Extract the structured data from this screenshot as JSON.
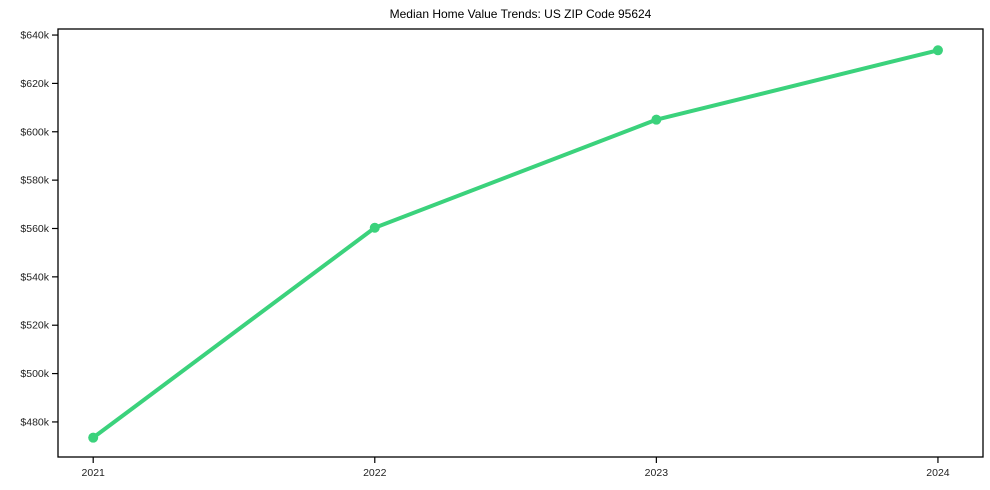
{
  "chart_data": {
    "type": "line",
    "title": "Median Home Value Trends: US ZIP Code 95624",
    "x": [
      2021,
      2022,
      2023,
      2024
    ],
    "x_tick_labels": [
      "2021",
      "2022",
      "2023",
      "2024"
    ],
    "series": [
      {
        "name": "Median Home Value",
        "values": [
          473500,
          560300,
          605000,
          633700
        ]
      }
    ],
    "y_ticks": [
      480000,
      500000,
      520000,
      540000,
      560000,
      580000,
      600000,
      620000,
      640000
    ],
    "y_tick_labels": [
      "$480k",
      "$500k",
      "$520k",
      "$540k",
      "$560k",
      "$580k",
      "$600k",
      "$620k",
      "$640k"
    ],
    "xlim": [
      2020.875,
      2024.16
    ],
    "ylim": [
      465500,
      642500
    ],
    "xlabel": "",
    "ylabel": "",
    "grid": false,
    "legend": "none",
    "line_color": "#3bd27c",
    "line_width": 4,
    "marker": "circle",
    "marker_radius": 5,
    "axis_color": "#000000",
    "tick_label_color": "#1f1f1f",
    "background": "#ffffff"
  }
}
